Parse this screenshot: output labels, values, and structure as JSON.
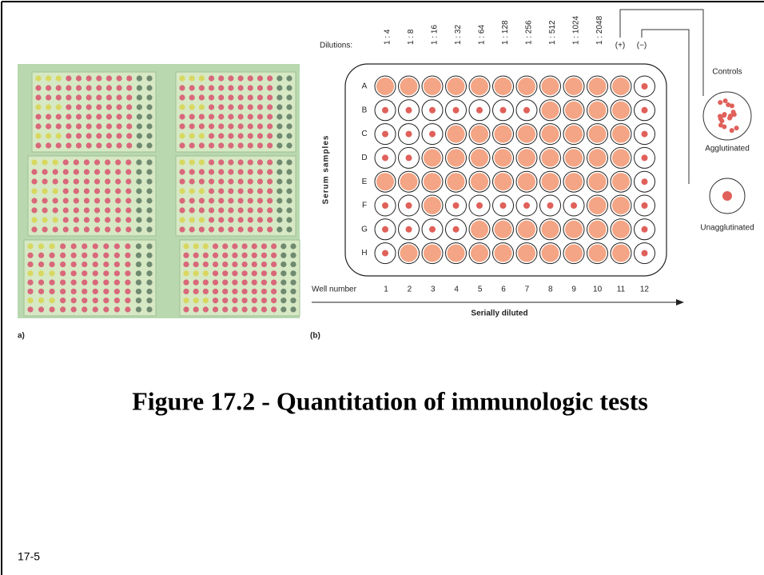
{
  "figure": {
    "panel_a": "a)",
    "panel_b": "(b)",
    "dilutions_label": "Dilutions:",
    "dilutions": [
      "1 : 4",
      "1 : 8",
      "1 : 16",
      "1 : 32",
      "1 : 64",
      "1 : 128",
      "1 : 256",
      "1 : 512",
      "1 : 1024",
      "1 : 2048"
    ],
    "positive": "(+)",
    "negative": "(−)",
    "rows": [
      "A",
      "B",
      "C",
      "D",
      "E",
      "F",
      "G",
      "H"
    ],
    "row_axis": "Serum samples",
    "well_number_label": "Well number",
    "well_numbers": [
      "1",
      "2",
      "3",
      "4",
      "5",
      "6",
      "7",
      "8",
      "9",
      "10",
      "11",
      "12"
    ],
    "arrow_label": "Serially diluted",
    "controls": "Controls",
    "agglutinated": "Agglutinated",
    "unagglutinated": "Unagglutinated"
  },
  "title": "Figure 17.2 - Quantitation of immunologic tests",
  "slide_number": "17-5"
}
